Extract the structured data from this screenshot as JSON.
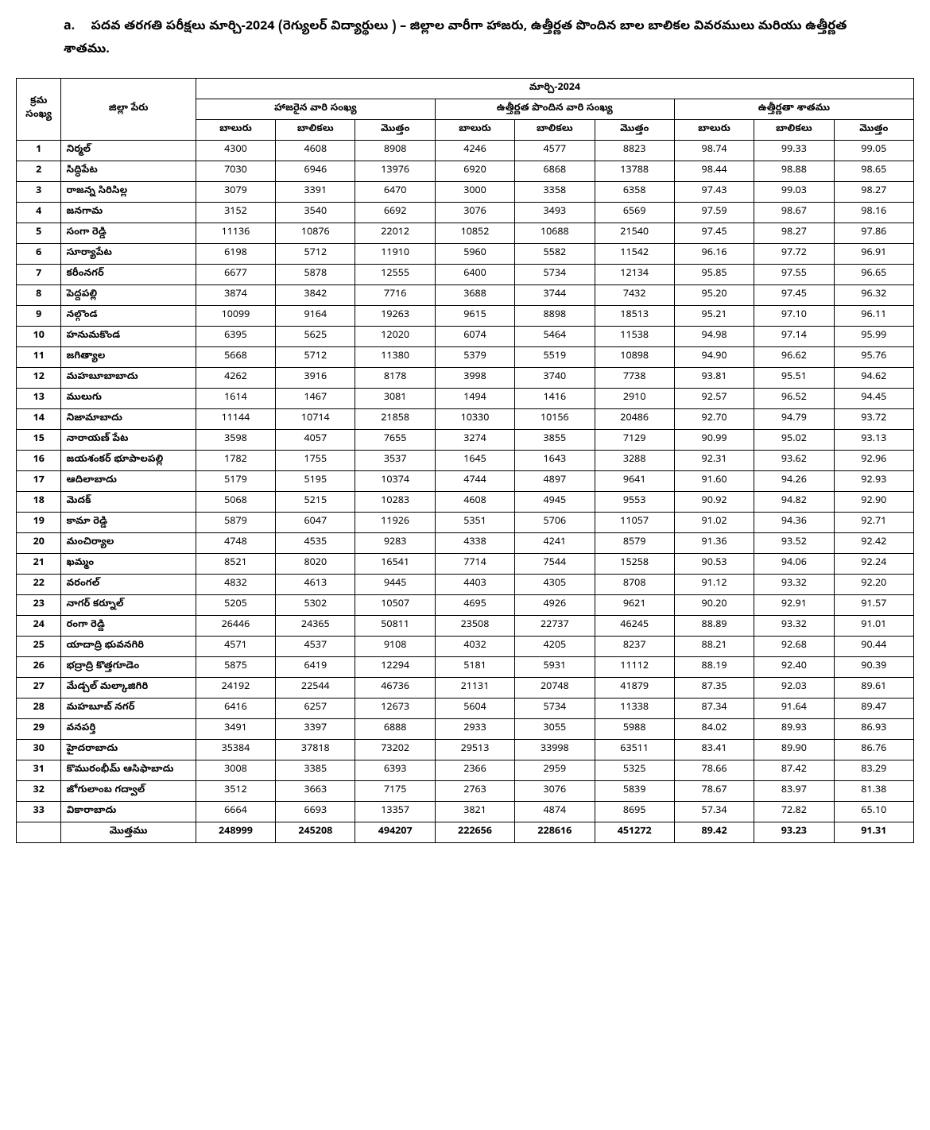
{
  "heading": {
    "label": "a.",
    "text": "పదవ తరగతి పరీక్షలు మార్చి-2024 (రెగ్యులర్ విద్యార్థులు ) – జిల్లాల వారీగా హాజరు, ఉత్తీర్ణత పొందిన బాల బాలికల వివరములు మరియు ఉత్తీర్ణత శాతము."
  },
  "table": {
    "header": {
      "sno": "క్రమ సంఖ్య",
      "district": "జిల్లా పేరు",
      "period": "మార్చి-2024",
      "group_appeared": "హాజరైన వారి సంఖ్య",
      "group_passed": "ఉత్తీర్ణత పొందిన వారి సంఖ్య",
      "group_percent": "ఉత్తీర్ణతా శాతము",
      "boys": "బాలురు",
      "girls": "బాలికలు",
      "total": "మొత్తం"
    },
    "rows": [
      {
        "sno": "1",
        "name": "నిర్మల్",
        "ab": "4300",
        "ag": "4608",
        "at": "8908",
        "pb": "4246",
        "pg": "4577",
        "pt": "8823",
        "pcb": "98.74",
        "pcg": "99.33",
        "pct": "99.05"
      },
      {
        "sno": "2",
        "name": "సిద్ధిపేట",
        "ab": "7030",
        "ag": "6946",
        "at": "13976",
        "pb": "6920",
        "pg": "6868",
        "pt": "13788",
        "pcb": "98.44",
        "pcg": "98.88",
        "pct": "98.65"
      },
      {
        "sno": "3",
        "name": "రాజన్న సిరిసిల్ల",
        "ab": "3079",
        "ag": "3391",
        "at": "6470",
        "pb": "3000",
        "pg": "3358",
        "pt": "6358",
        "pcb": "97.43",
        "pcg": "99.03",
        "pct": "98.27"
      },
      {
        "sno": "4",
        "name": "జనగామ",
        "ab": "3152",
        "ag": "3540",
        "at": "6692",
        "pb": "3076",
        "pg": "3493",
        "pt": "6569",
        "pcb": "97.59",
        "pcg": "98.67",
        "pct": "98.16"
      },
      {
        "sno": "5",
        "name": "సంగా రెడ్డి",
        "ab": "11136",
        "ag": "10876",
        "at": "22012",
        "pb": "10852",
        "pg": "10688",
        "pt": "21540",
        "pcb": "97.45",
        "pcg": "98.27",
        "pct": "97.86"
      },
      {
        "sno": "6",
        "name": "సూర్యాపేట",
        "ab": "6198",
        "ag": "5712",
        "at": "11910",
        "pb": "5960",
        "pg": "5582",
        "pt": "11542",
        "pcb": "96.16",
        "pcg": "97.72",
        "pct": "96.91"
      },
      {
        "sno": "7",
        "name": "కరీంనగర్",
        "ab": "6677",
        "ag": "5878",
        "at": "12555",
        "pb": "6400",
        "pg": "5734",
        "pt": "12134",
        "pcb": "95.85",
        "pcg": "97.55",
        "pct": "96.65"
      },
      {
        "sno": "8",
        "name": "పెద్దపల్లి",
        "ab": "3874",
        "ag": "3842",
        "at": "7716",
        "pb": "3688",
        "pg": "3744",
        "pt": "7432",
        "pcb": "95.20",
        "pcg": "97.45",
        "pct": "96.32"
      },
      {
        "sno": "9",
        "name": "నల్గొండ",
        "ab": "10099",
        "ag": "9164",
        "at": "19263",
        "pb": "9615",
        "pg": "8898",
        "pt": "18513",
        "pcb": "95.21",
        "pcg": "97.10",
        "pct": "96.11"
      },
      {
        "sno": "10",
        "name": "హనుమకొండ",
        "ab": "6395",
        "ag": "5625",
        "at": "12020",
        "pb": "6074",
        "pg": "5464",
        "pt": "11538",
        "pcb": "94.98",
        "pcg": "97.14",
        "pct": "95.99"
      },
      {
        "sno": "11",
        "name": "జగిత్యాల",
        "ab": "5668",
        "ag": "5712",
        "at": "11380",
        "pb": "5379",
        "pg": "5519",
        "pt": "10898",
        "pcb": "94.90",
        "pcg": "96.62",
        "pct": "95.76"
      },
      {
        "sno": "12",
        "name": "మహబూబాబాదు",
        "ab": "4262",
        "ag": "3916",
        "at": "8178",
        "pb": "3998",
        "pg": "3740",
        "pt": "7738",
        "pcb": "93.81",
        "pcg": "95.51",
        "pct": "94.62"
      },
      {
        "sno": "13",
        "name": "ములుగు",
        "ab": "1614",
        "ag": "1467",
        "at": "3081",
        "pb": "1494",
        "pg": "1416",
        "pt": "2910",
        "pcb": "92.57",
        "pcg": "96.52",
        "pct": "94.45"
      },
      {
        "sno": "14",
        "name": "నిజామాబాదు",
        "ab": "11144",
        "ag": "10714",
        "at": "21858",
        "pb": "10330",
        "pg": "10156",
        "pt": "20486",
        "pcb": "92.70",
        "pcg": "94.79",
        "pct": "93.72"
      },
      {
        "sno": "15",
        "name": "నారాయణ్ పేట",
        "ab": "3598",
        "ag": "4057",
        "at": "7655",
        "pb": "3274",
        "pg": "3855",
        "pt": "7129",
        "pcb": "90.99",
        "pcg": "95.02",
        "pct": "93.13"
      },
      {
        "sno": "16",
        "name": "జయశంకర్ భూపాలపల్లి",
        "ab": "1782",
        "ag": "1755",
        "at": "3537",
        "pb": "1645",
        "pg": "1643",
        "pt": "3288",
        "pcb": "92.31",
        "pcg": "93.62",
        "pct": "92.96"
      },
      {
        "sno": "17",
        "name": "ఆదిలాబాదు",
        "ab": "5179",
        "ag": "5195",
        "at": "10374",
        "pb": "4744",
        "pg": "4897",
        "pt": "9641",
        "pcb": "91.60",
        "pcg": "94.26",
        "pct": "92.93"
      },
      {
        "sno": "18",
        "name": "మెదక్",
        "ab": "5068",
        "ag": "5215",
        "at": "10283",
        "pb": "4608",
        "pg": "4945",
        "pt": "9553",
        "pcb": "90.92",
        "pcg": "94.82",
        "pct": "92.90"
      },
      {
        "sno": "19",
        "name": "కామా రెడ్డి",
        "ab": "5879",
        "ag": "6047",
        "at": "11926",
        "pb": "5351",
        "pg": "5706",
        "pt": "11057",
        "pcb": "91.02",
        "pcg": "94.36",
        "pct": "92.71"
      },
      {
        "sno": "20",
        "name": "మంచిర్యాల",
        "ab": "4748",
        "ag": "4535",
        "at": "9283",
        "pb": "4338",
        "pg": "4241",
        "pt": "8579",
        "pcb": "91.36",
        "pcg": "93.52",
        "pct": "92.42"
      },
      {
        "sno": "21",
        "name": "ఖమ్మం",
        "ab": "8521",
        "ag": "8020",
        "at": "16541",
        "pb": "7714",
        "pg": "7544",
        "pt": "15258",
        "pcb": "90.53",
        "pcg": "94.06",
        "pct": "92.24"
      },
      {
        "sno": "22",
        "name": "వరంగల్",
        "ab": "4832",
        "ag": "4613",
        "at": "9445",
        "pb": "4403",
        "pg": "4305",
        "pt": "8708",
        "pcb": "91.12",
        "pcg": "93.32",
        "pct": "92.20"
      },
      {
        "sno": "23",
        "name": "నాగర్ కర్నూల్",
        "ab": "5205",
        "ag": "5302",
        "at": "10507",
        "pb": "4695",
        "pg": "4926",
        "pt": "9621",
        "pcb": "90.20",
        "pcg": "92.91",
        "pct": "91.57"
      },
      {
        "sno": "24",
        "name": "రంగా రెడ్డి",
        "ab": "26446",
        "ag": "24365",
        "at": "50811",
        "pb": "23508",
        "pg": "22737",
        "pt": "46245",
        "pcb": "88.89",
        "pcg": "93.32",
        "pct": "91.01"
      },
      {
        "sno": "25",
        "name": "యాదాద్రి భువనగిరి",
        "ab": "4571",
        "ag": "4537",
        "at": "9108",
        "pb": "4032",
        "pg": "4205",
        "pt": "8237",
        "pcb": "88.21",
        "pcg": "92.68",
        "pct": "90.44"
      },
      {
        "sno": "26",
        "name": "భద్రాద్రి కొత్తగూడెం",
        "ab": "5875",
        "ag": "6419",
        "at": "12294",
        "pb": "5181",
        "pg": "5931",
        "pt": "11112",
        "pcb": "88.19",
        "pcg": "92.40",
        "pct": "90.39"
      },
      {
        "sno": "27",
        "name": "మేడ్చల్ మల్కాజిగిరి",
        "ab": "24192",
        "ag": "22544",
        "at": "46736",
        "pb": "21131",
        "pg": "20748",
        "pt": "41879",
        "pcb": "87.35",
        "pcg": "92.03",
        "pct": "89.61"
      },
      {
        "sno": "28",
        "name": "మహబూబ్ నగర్",
        "ab": "6416",
        "ag": "6257",
        "at": "12673",
        "pb": "5604",
        "pg": "5734",
        "pt": "11338",
        "pcb": "87.34",
        "pcg": "91.64",
        "pct": "89.47"
      },
      {
        "sno": "29",
        "name": "వనపర్తి",
        "ab": "3491",
        "ag": "3397",
        "at": "6888",
        "pb": "2933",
        "pg": "3055",
        "pt": "5988",
        "pcb": "84.02",
        "pcg": "89.93",
        "pct": "86.93"
      },
      {
        "sno": "30",
        "name": "హైదరాబాదు",
        "ab": "35384",
        "ag": "37818",
        "at": "73202",
        "pb": "29513",
        "pg": "33998",
        "pt": "63511",
        "pcb": "83.41",
        "pcg": "89.90",
        "pct": "86.76"
      },
      {
        "sno": "31",
        "name": "కొమురంభీమ్ ఆసిఫాబాదు",
        "ab": "3008",
        "ag": "3385",
        "at": "6393",
        "pb": "2366",
        "pg": "2959",
        "pt": "5325",
        "pcb": "78.66",
        "pcg": "87.42",
        "pct": "83.29"
      },
      {
        "sno": "32",
        "name": "జోగులాంబ గద్వాల్",
        "ab": "3512",
        "ag": "3663",
        "at": "7175",
        "pb": "2763",
        "pg": "3076",
        "pt": "5839",
        "pcb": "78.67",
        "pcg": "83.97",
        "pct": "81.38"
      },
      {
        "sno": "33",
        "name": "వికారాబాదు",
        "ab": "6664",
        "ag": "6693",
        "at": "13357",
        "pb": "3821",
        "pg": "4874",
        "pt": "8695",
        "pcb": "57.34",
        "pcg": "72.82",
        "pct": "65.10"
      }
    ],
    "footer": {
      "name": "మొత్తము",
      "ab": "248999",
      "ag": "245208",
      "at": "494207",
      "pb": "222656",
      "pg": "228616",
      "pt": "451272",
      "pcb": "89.42",
      "pcg": "93.23",
      "pct": "91.31"
    }
  }
}
